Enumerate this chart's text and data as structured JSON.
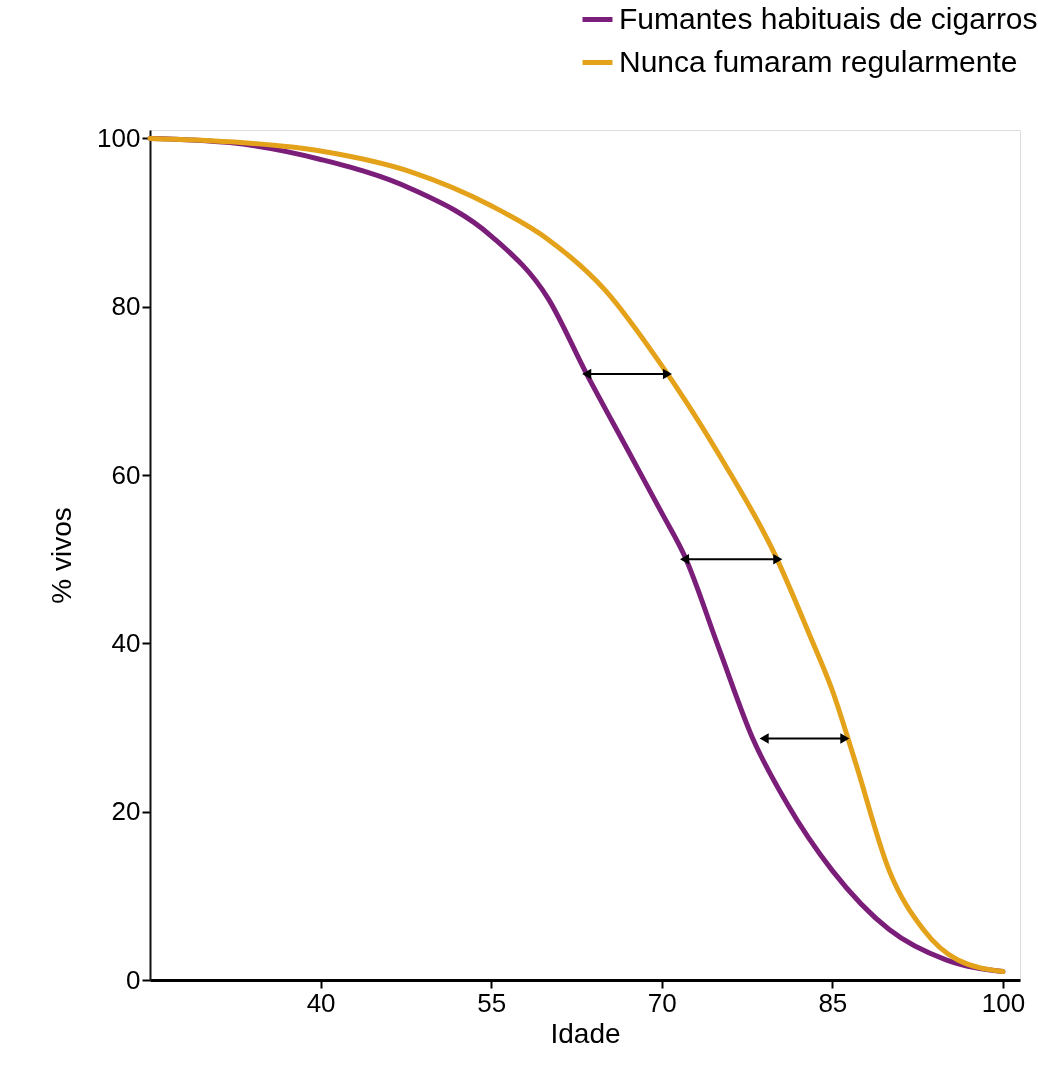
{
  "chart_data": {
    "type": "line",
    "xlabel": "Idade",
    "ylabel": "% vivos",
    "xlim": [
      25,
      101.5
    ],
    "ylim": [
      0,
      101
    ],
    "xticks": [
      40,
      55,
      70,
      85,
      100
    ],
    "yticks": [
      0,
      20,
      40,
      60,
      80,
      100
    ],
    "grid": false,
    "legend": "top right",
    "marker": "none",
    "line_style": "solid",
    "series": [
      {
        "name": "Fumantes habituais de cigarros",
        "color": "#7b1e7a",
        "x": [
          25,
          32,
          40,
          48,
          55,
          60,
          63.4,
          67,
          70,
          72,
          75,
          78,
          81,
          85,
          90,
          95,
          100
        ],
        "values": [
          100,
          99.5,
          97.5,
          94,
          88.4,
          81,
          72,
          63,
          55.5,
          50.4,
          39.5,
          28.7,
          21,
          13,
          6,
          2.4,
          1
        ]
      },
      {
        "name": "Nunca fumaram regularmente",
        "color": "#e3a21a",
        "x": [
          25,
          32,
          40,
          48,
          55,
          60,
          65,
          70,
          72,
          75,
          80,
          83,
          85,
          87,
          90,
          93,
          96,
          100
        ],
        "values": [
          100,
          99.6,
          98.5,
          96,
          92,
          88,
          82,
          73,
          69,
          62.5,
          50.4,
          41,
          34.4,
          26,
          13,
          6,
          2.4,
          1
        ]
      },
      {
        "type": "line",
        "color": "#000000",
        "marker": "triangle",
        "x": [
          63.4,
          70.5
        ],
        "values": [
          72,
          72
        ]
      },
      {
        "type": "line",
        "color": "#000000",
        "marker": "triangle",
        "x": [
          72,
          80.2
        ],
        "values": [
          50,
          50
        ]
      },
      {
        "type": "line",
        "color": "#000000",
        "marker": "triangle",
        "x": [
          79,
          86.1
        ],
        "values": [
          28.7,
          28.7
        ]
      }
    ]
  }
}
